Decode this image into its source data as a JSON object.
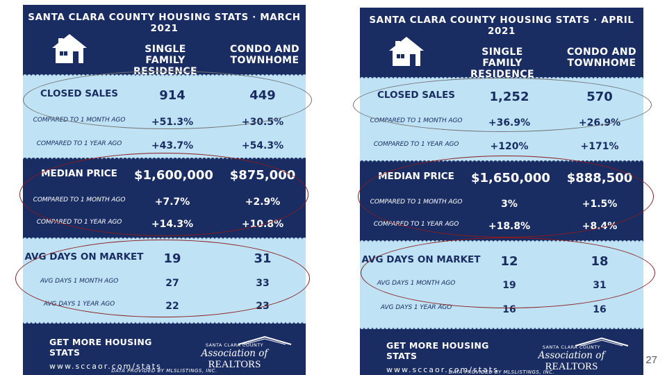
{
  "slide": {
    "page_number": "27"
  },
  "march": {
    "title": "SANTA CLARA COUNTY HOUSING STATS · MARCH 2021",
    "col_sfr": "SINGLE FAMILY RESIDENCE",
    "col_condo": "CONDO AND TOWNHOME",
    "closed_sales": {
      "label": "CLOSED SALES",
      "sfr": "914",
      "condo": "449"
    },
    "closed_1m": {
      "label": "COMPARED TO 1 MONTH AGO",
      "sfr": "+51.3%",
      "condo": "+30.5%"
    },
    "closed_1y": {
      "label": "COMPARED TO 1 YEAR AGO",
      "sfr": "+43.7%",
      "condo": "+54.3%"
    },
    "median": {
      "label": "MEDIAN PRICE",
      "sfr": "$1,600,000",
      "condo": "$875,000"
    },
    "median_1m": {
      "label": "COMPARED TO 1 MONTH AGO",
      "sfr": "+7.7%",
      "condo": "+2.9%"
    },
    "median_1y": {
      "label": "COMPARED TO 1 YEAR AGO",
      "sfr": "+14.3%",
      "condo": "+10.8%"
    },
    "dom": {
      "label": "AVG DAYS ON MARKET",
      "sfr": "19",
      "condo": "31"
    },
    "dom_1m": {
      "label": "AVG DAYS 1 MONTH AGO",
      "sfr": "27",
      "condo": "33"
    },
    "dom_1y": {
      "label": "AVG DAYS 1 YEAR AGO",
      "sfr": "22",
      "condo": "23"
    },
    "cta": "GET MORE HOUSING STATS",
    "url": "www.sccaor.com/stats",
    "assoc_small": "SANTA CLARA COUNTY",
    "assoc_big": "Association of",
    "assoc_brand": "REALTORS",
    "data_by": "DATA PROVIDED BY MLSLISTINGS, INC."
  },
  "april": {
    "title": "SANTA CLARA COUNTY HOUSING STATS · APRIL 2021",
    "col_sfr": "SINGLE FAMILY RESIDENCE",
    "col_condo": "CONDO AND TOWNHOME",
    "closed_sales": {
      "label": "CLOSED SALES",
      "sfr": "1,252",
      "condo": "570"
    },
    "closed_1m": {
      "label": "COMPARED TO 1 MONTH AGO",
      "sfr": "+36.9%",
      "condo": "+26.9%"
    },
    "closed_1y": {
      "label": "COMPARED TO 1 YEAR AGO",
      "sfr": "+120%",
      "condo": "+171%"
    },
    "median": {
      "label": "MEDIAN PRICE",
      "sfr": "$1,650,000",
      "condo": "$888,500"
    },
    "median_1m": {
      "label": "COMPARED TO 1 MONTH AGO",
      "sfr": "3%",
      "condo": "+1.5%"
    },
    "median_1y": {
      "label": "COMPARED TO 1 YEAR AGO",
      "sfr": "+18.8%",
      "condo": "+8.4%"
    },
    "dom": {
      "label": "AVG DAYS ON MARKET",
      "sfr": "12",
      "condo": "18"
    },
    "dom_1m": {
      "label": "AVG DAYS 1 MONTH AGO",
      "sfr": "19",
      "condo": "31"
    },
    "dom_1y": {
      "label": "AVG DAYS 1 YEAR AGO",
      "sfr": "16",
      "condo": "16"
    },
    "cta": "GET MORE HOUSING STATS",
    "url": "www.sccaor.com/stats",
    "assoc_small": "SANTA CLARA COUNTY",
    "assoc_big": "Association of",
    "assoc_brand": "REALTORS",
    "data_by": "DATA PROVIDED BY MLSLISTINGS, INC."
  },
  "colors": {
    "navy": "#1a2d63",
    "light_blue": "#bfe3f5",
    "ellipse_gray": "#707070",
    "ellipse_red": "#8a1c1c"
  }
}
